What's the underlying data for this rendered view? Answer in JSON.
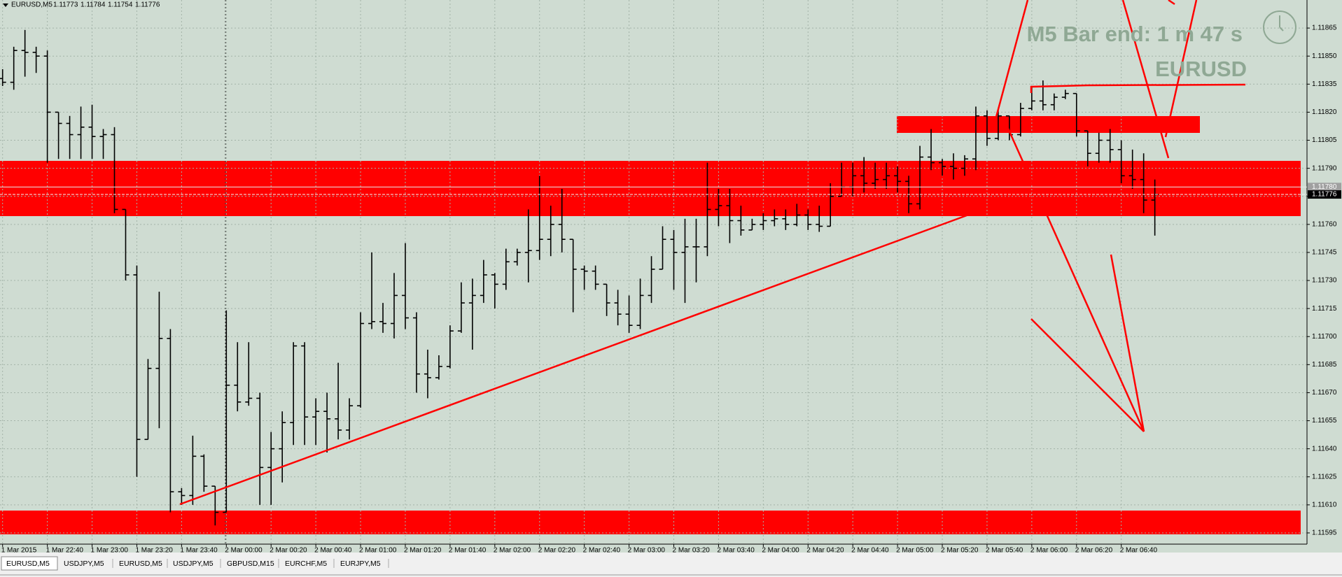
{
  "chart_data": {
    "type": "ohlc",
    "categories": [
      "1 Mar 2015",
      null,
      null,
      null,
      "1 Mar 22:40",
      null,
      null,
      null,
      "1 Mar 23:00",
      null,
      null,
      null,
      "1 Mar 23:20",
      null,
      null,
      null,
      "1 Mar 23:40",
      null,
      null,
      null,
      "2 Mar 00:00",
      null,
      null,
      null,
      "2 Mar 00:20",
      null,
      null,
      null,
      "2 Mar 00:40",
      null,
      null,
      null,
      "2 Mar 01:00",
      null,
      null,
      null,
      "2 Mar 01:20",
      null,
      null,
      null,
      "2 Mar 01:40",
      null,
      null,
      null,
      "2 Mar 02:00",
      null,
      null,
      null,
      "2 Mar 02:20",
      null,
      null,
      null,
      "2 Mar 02:40",
      null,
      null,
      null,
      "2 Mar 03:00",
      null,
      null,
      null,
      "2 Mar 03:20",
      null,
      null,
      null,
      "2 Mar 03:40",
      null,
      null,
      null,
      "2 Mar 04:00",
      null,
      null,
      null,
      "2 Mar 04:20",
      null,
      null,
      null,
      "2 Mar 04:40",
      null,
      null,
      null,
      "2 Mar 05:00",
      null,
      null,
      null,
      "2 Mar 05:20",
      null,
      null,
      null,
      "2 Mar 05:40",
      null,
      null,
      null,
      "2 Mar 06:00",
      null,
      null,
      null,
      "2 Mar 06:20",
      null,
      null,
      null,
      "2 Mar 06:40",
      null,
      null,
      null
    ],
    "open": [
      1.11838,
      1.11836,
      1.11853,
      1.11852,
      1.1185,
      1.1182,
      1.11814,
      1.11808,
      1.11812,
      1.11807,
      1.11808,
      1.11768,
      1.11733,
      1.11645,
      1.11683,
      1.11699,
      1.11617,
      1.11615,
      1.11636,
      1.1162,
      1.11606,
      1.11674,
      1.11665,
      1.11667,
      1.1163,
      1.1164,
      1.11654,
      1.11695,
      1.11657,
      1.1166,
      1.11656,
      1.1165,
      1.11663,
      1.11707,
      1.11708,
      1.11707,
      1.11722,
      1.1171,
      1.1168,
      1.11678,
      1.11684,
      1.11703,
      1.11718,
      1.11722,
      1.11733,
      1.11728,
      1.1174,
      1.11745,
      1.11746,
      1.11752,
      1.1176,
      1.11752,
      1.11736,
      1.11735,
      1.11728,
      1.11718,
      1.11712,
      1.11706,
      1.11722,
      1.11736,
      1.11752,
      1.11745,
      1.11748,
      1.11748,
      1.11768,
      1.1177,
      1.11762,
      1.11757,
      1.1176,
      1.11762,
      1.11763,
      1.1176,
      1.11765,
      1.1176,
      1.11759,
      1.11775,
      1.1178,
      1.11786,
      1.11782,
      1.11784,
      1.11786,
      1.11783,
      1.11771,
      1.11796,
      1.11793,
      1.11791,
      1.1179,
      1.11795,
      1.11818,
      1.11806,
      1.11818,
      1.11808,
      1.11822,
      1.11826,
      1.11824,
      1.11828,
      1.1183,
      1.1181,
      1.11798,
      1.11805,
      1.118,
      1.11786,
      1.11784,
      1.11773
    ],
    "high": [
      1.11843,
      1.11855,
      1.11864,
      1.11855,
      1.11853,
      1.1182,
      1.11818,
      1.11823,
      1.11824,
      1.11811,
      1.11812,
      1.11768,
      1.11738,
      1.11688,
      1.11724,
      1.11704,
      1.11619,
      1.11647,
      1.11637,
      1.1162,
      1.11714,
      1.11697,
      1.11697,
      1.1167,
      1.11649,
      1.1166,
      1.11697,
      1.11697,
      1.11667,
      1.1167,
      1.11686,
      1.11667,
      1.11713,
      1.11745,
      1.11718,
      1.11734,
      1.1175,
      1.11713,
      1.11693,
      1.1169,
      1.11706,
      1.11729,
      1.11731,
      1.11741,
      1.11734,
      1.11747,
      1.11747,
      1.11768,
      1.11786,
      1.1177,
      1.11779,
      1.11752,
      1.11738,
      1.11738,
      1.11728,
      1.11725,
      1.11722,
      1.11731,
      1.11743,
      1.11759,
      1.11757,
      1.11763,
      1.11763,
      1.11793,
      1.11779,
      1.11779,
      1.1177,
      1.11763,
      1.11766,
      1.11768,
      1.11768,
      1.11771,
      1.11768,
      1.1177,
      1.11782,
      1.11793,
      1.11793,
      1.11796,
      1.11793,
      1.11793,
      1.11791,
      1.11786,
      1.11802,
      1.11811,
      1.11795,
      1.11798,
      1.11797,
      1.11823,
      1.11821,
      1.11821,
      1.11818,
      1.11825,
      1.11834,
      1.11837,
      1.1183,
      1.11832,
      1.1183,
      1.1181,
      1.11809,
      1.11811,
      1.11805,
      1.118,
      1.11798,
      1.11784
    ],
    "low": [
      1.11834,
      1.11832,
      1.11839,
      1.11841,
      1.11793,
      1.11795,
      1.11795,
      1.11795,
      1.11795,
      1.11795,
      1.11766,
      1.1173,
      1.11625,
      1.11645,
      1.11651,
      1.11606,
      1.1161,
      1.1161,
      1.11617,
      1.11599,
      1.11606,
      1.1166,
      1.11663,
      1.1161,
      1.1161,
      1.11622,
      1.11642,
      1.11642,
      1.11642,
      1.11638,
      1.11645,
      1.11645,
      1.11662,
      1.11704,
      1.11702,
      1.11699,
      1.11704,
      1.1167,
      1.11667,
      1.11677,
      1.11683,
      1.11702,
      1.11693,
      1.11718,
      1.11715,
      1.11725,
      1.11738,
      1.11729,
      1.11741,
      1.11743,
      1.11745,
      1.11713,
      1.11725,
      1.11725,
      1.11711,
      1.11706,
      1.11702,
      1.11704,
      1.11718,
      1.11736,
      1.11725,
      1.11718,
      1.11729,
      1.11743,
      1.11759,
      1.1175,
      1.11754,
      1.11757,
      1.11757,
      1.11759,
      1.11757,
      1.11759,
      1.11757,
      1.11756,
      1.11759,
      1.11775,
      1.11775,
      1.11777,
      1.11779,
      1.11779,
      1.11777,
      1.11766,
      1.11768,
      1.11789,
      1.11786,
      1.11784,
      1.11786,
      1.11789,
      1.11802,
      1.11805,
      1.11805,
      1.11807,
      1.11821,
      1.11821,
      1.11821,
      1.11827,
      1.11807,
      1.11791,
      1.11793,
      1.11793,
      1.11782,
      1.11779,
      1.11766,
      1.11754
    ],
    "close": [
      1.11836,
      1.11853,
      1.11852,
      1.1185,
      1.1182,
      1.11814,
      1.11808,
      1.11812,
      1.11807,
      1.11808,
      1.11768,
      1.11733,
      1.11645,
      1.11683,
      1.11699,
      1.11617,
      1.11615,
      1.11636,
      1.1162,
      1.11606,
      1.11674,
      1.11665,
      1.11667,
      1.1163,
      1.1164,
      1.11654,
      1.11695,
      1.11657,
      1.1166,
      1.11656,
      1.1165,
      1.11663,
      1.11707,
      1.11708,
      1.11707,
      1.11722,
      1.1171,
      1.1168,
      1.11678,
      1.11684,
      1.11703,
      1.11718,
      1.11722,
      1.11733,
      1.11728,
      1.1174,
      1.11745,
      1.11746,
      1.11752,
      1.1176,
      1.11752,
      1.11736,
      1.11735,
      1.11728,
      1.11718,
      1.11712,
      1.11706,
      1.11722,
      1.11736,
      1.11752,
      1.11745,
      1.11748,
      1.11748,
      1.11768,
      1.1177,
      1.11762,
      1.11757,
      1.1176,
      1.11762,
      1.11763,
      1.1176,
      1.11765,
      1.1176,
      1.11759,
      1.11775,
      1.1178,
      1.11786,
      1.11782,
      1.11784,
      1.11786,
      1.11783,
      1.11771,
      1.11796,
      1.11793,
      1.11791,
      1.1179,
      1.11795,
      1.11818,
      1.11806,
      1.11818,
      1.11808,
      1.11822,
      1.11826,
      1.11824,
      1.11828,
      1.1183,
      1.1181,
      1.11798,
      1.11805,
      1.118,
      1.11786,
      1.11784,
      1.11773,
      1.11776
    ],
    "color": "#000000",
    "ylim": [
      1.11589,
      1.1188
    ],
    "yticks": [
      1.11865,
      {
        "value": 1.1185,
        "label": "1.11850"
      },
      1.11835,
      {
        "value": 1.1182,
        "label": "1.11820"
      },
      1.11805,
      {
        "value": 1.1179,
        "label": "1.11790"
      },
      1.11775,
      {
        "value": 1.1176,
        "label": "1.11760"
      },
      1.11745,
      {
        "value": 1.1173,
        "label": "1.11730"
      },
      1.11715,
      {
        "value": 1.117,
        "label": "1.11700"
      },
      1.11685,
      {
        "value": 1.1167,
        "label": "1.11670"
      },
      1.11655,
      {
        "value": 1.1164,
        "label": "1.11640"
      },
      1.11625,
      {
        "value": 1.1161,
        "label": "1.11610"
      },
      1.11595
    ],
    "ask": {
      "value": 1.1178,
      "label": "1.11780"
    },
    "grid": true
  },
  "header": {
    "symbol": "EURUSD,M5"
  },
  "overlay": {
    "bar_timer": "M5 Bar end: 1 m 47 s",
    "symbol": "EURUSD"
  },
  "tabs": [
    "EURUSD,M5",
    "USDJPY,M5",
    "EURUSD,M5",
    "USDJPY,M5",
    "GBPUSD,M15",
    "EURCHF,M5",
    "EURJPY,M5"
  ]
}
